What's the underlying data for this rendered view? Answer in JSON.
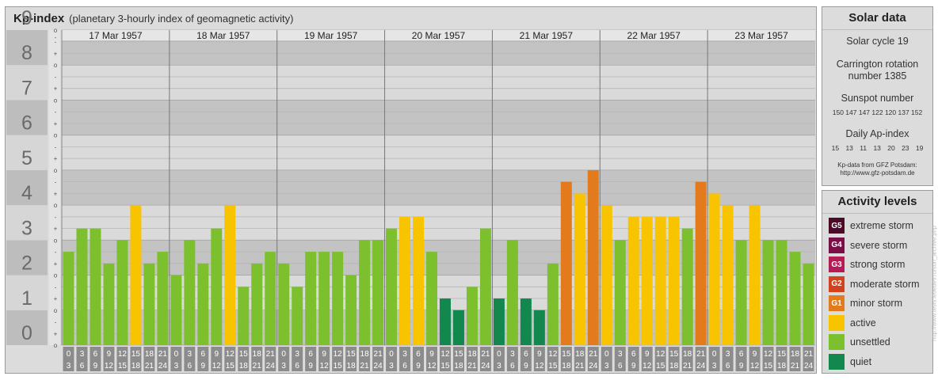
{
  "header": {
    "title": "Kp-index",
    "subtitle": "(planetary 3-hourly index of geomagnetic activity)"
  },
  "chart_data": {
    "type": "bar",
    "title": "Kp-index",
    "subtitle": "(planetary 3-hourly index of geomagnetic activity)",
    "ylim": [
      0,
      9
    ],
    "y_ticks": [
      "0",
      "1",
      "2",
      "3",
      "4",
      "5",
      "6",
      "7",
      "8",
      "9"
    ],
    "sub_ticks": [
      "+",
      "o",
      "-"
    ],
    "days": [
      "17 Mar 1957",
      "18 Mar 1957",
      "19 Mar 1957",
      "20 Mar 1957",
      "21 Mar 1957",
      "22 Mar 1957",
      "23 Mar 1957"
    ],
    "hour_labels": [
      [
        "0",
        "3"
      ],
      [
        "3",
        "6"
      ],
      [
        "6",
        "9"
      ],
      [
        "9",
        "12"
      ],
      [
        "12",
        "15"
      ],
      [
        "15",
        "18"
      ],
      [
        "18",
        "21"
      ],
      [
        "21",
        "24"
      ]
    ],
    "values": [
      [
        2.667,
        3.333,
        3.333,
        2.333,
        3.0,
        4.0,
        2.333,
        2.667
      ],
      [
        2.0,
        3.0,
        2.333,
        3.333,
        4.0,
        1.667,
        2.333,
        2.667
      ],
      [
        2.333,
        1.667,
        2.667,
        2.667,
        2.667,
        2.0,
        3.0,
        3.0
      ],
      [
        3.333,
        3.667,
        3.667,
        2.667,
        1.333,
        1.0,
        1.667,
        3.333
      ],
      [
        1.333,
        3.0,
        1.333,
        1.0,
        2.333,
        4.667,
        4.333,
        5.0
      ],
      [
        4.0,
        3.0,
        3.667,
        3.667,
        3.667,
        3.667,
        3.333,
        4.667
      ],
      [
        4.333,
        4.0,
        3.0,
        4.0,
        3.0,
        3.0,
        2.667,
        2.333
      ]
    ],
    "colors": {
      "quiet": "#12874e",
      "unsettled": "#7cc02e",
      "active": "#f8c400",
      "minor": "#e37a1b",
      "moderate": "#d2421d",
      "strong": "#b51b56",
      "severe": "#7a0f48",
      "extreme": "#4a0a28"
    },
    "grid": true
  },
  "solar": {
    "title": "Solar data",
    "cycle": "Solar cycle 19",
    "carrington_line1": "Carrington rotation",
    "carrington_line2": "number 1385",
    "sunspot_title": "Sunspot number",
    "sunspot_values": "150 147 147 122 120 137 152",
    "ap_title": "Daily Ap-index",
    "ap_values": "15 13 11 13 20 23 19",
    "source_line1": "Kp-data from GFZ Potsdam:",
    "source_line2": "http://www.gfz-potsdam.de"
  },
  "levels": {
    "title": "Activity levels",
    "items": [
      {
        "code": "G5",
        "label": "extreme storm",
        "color": "#4a0a28"
      },
      {
        "code": "G4",
        "label": "severe storm",
        "color": "#7a0f48"
      },
      {
        "code": "G3",
        "label": "strong storm",
        "color": "#b51b56"
      },
      {
        "code": "G2",
        "label": "moderate storm",
        "color": "#d2421d"
      },
      {
        "code": "G1",
        "label": "minor storm",
        "color": "#e37a1b"
      },
      {
        "code": "",
        "label": "active",
        "color": "#f8c400"
      },
      {
        "code": "",
        "label": "unsettled",
        "color": "#7cc02e"
      },
      {
        "code": "",
        "label": "quiet",
        "color": "#12874e"
      }
    ]
  },
  "credit": "http://www.tesis.lebedev.ru/sun_archive.php"
}
